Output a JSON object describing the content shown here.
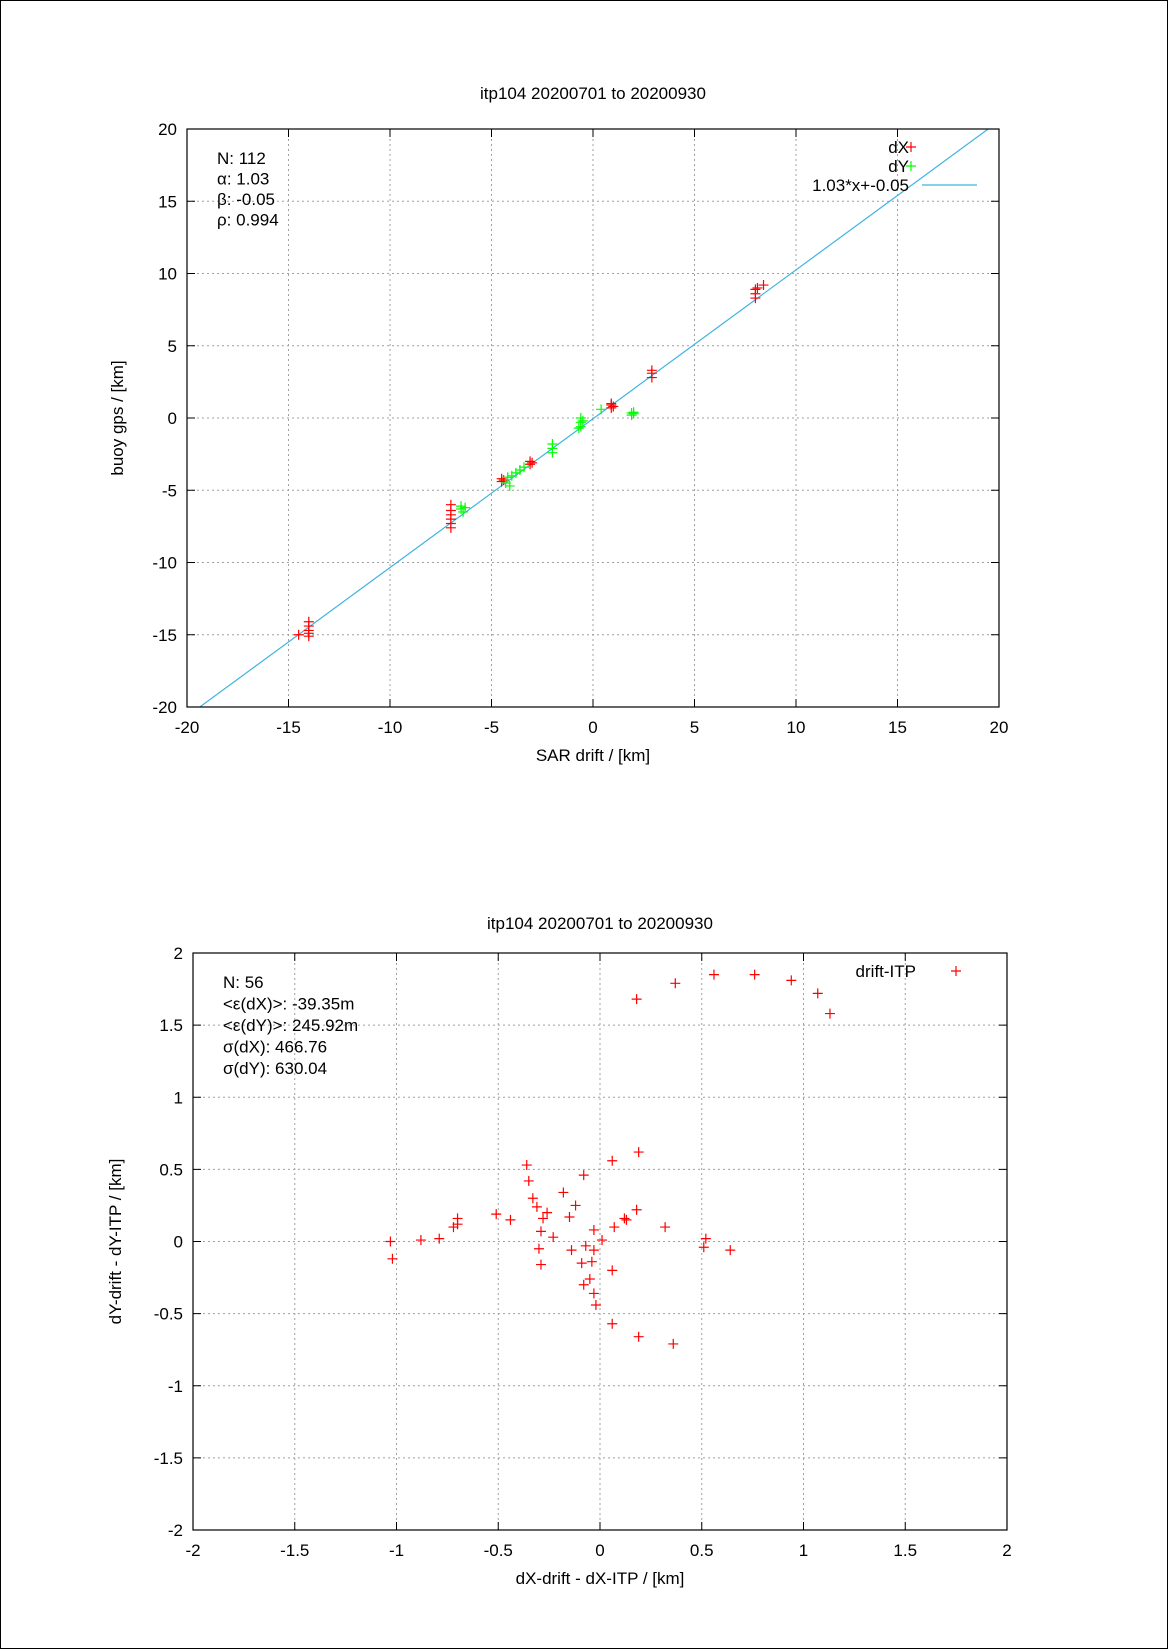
{
  "chart_data": [
    {
      "type": "scatter",
      "title": "itp104 20200701 to 20200930",
      "xlabel": "SAR drift / [km]",
      "ylabel": "buoy gps / [km]",
      "xlim": [
        -20,
        20
      ],
      "ylim": [
        -20,
        20
      ],
      "xticks": [
        "-20",
        "-15",
        "-10",
        "-5",
        "0",
        "5",
        "10",
        "15",
        "20"
      ],
      "yticks": [
        "-20",
        "-15",
        "-10",
        "-5",
        "0",
        "5",
        "10",
        "15",
        "20"
      ],
      "grid": true,
      "legend_position": "top-right",
      "stats": [
        "N: 112",
        "α: 1.03",
        "β: -0.05",
        "ρ: 0.994"
      ],
      "series": [
        {
          "name": "dX",
          "color": "#ff0000",
          "marker": "plus",
          "points": [
            [
              -14.5,
              -15.0
            ],
            [
              -14.0,
              -14.1
            ],
            [
              -14.0,
              -14.4
            ],
            [
              -14.0,
              -14.7
            ],
            [
              -14.0,
              -14.9
            ],
            [
              -14.0,
              -15.1
            ],
            [
              -7.0,
              -6.0
            ],
            [
              -7.0,
              -6.4
            ],
            [
              -7.0,
              -6.7
            ],
            [
              -7.0,
              -7.0
            ],
            [
              -7.0,
              -7.3
            ],
            [
              -7.0,
              -7.6
            ],
            [
              -4.5,
              -4.2
            ],
            [
              -4.5,
              -4.4
            ],
            [
              -4.4,
              -4.3
            ],
            [
              -3.1,
              -3.0
            ],
            [
              -3.1,
              -3.2
            ],
            [
              -3.0,
              -3.1
            ],
            [
              0.9,
              0.7
            ],
            [
              0.9,
              0.9
            ],
            [
              0.9,
              1.0
            ],
            [
              1.0,
              0.8
            ],
            [
              2.9,
              2.8
            ],
            [
              2.9,
              3.1
            ],
            [
              2.9,
              3.3
            ],
            [
              8.0,
              8.3
            ],
            [
              8.0,
              8.6
            ],
            [
              8.0,
              8.9
            ],
            [
              8.1,
              9.0
            ],
            [
              8.4,
              9.2
            ]
          ]
        },
        {
          "name": "dY",
          "color": "#00ff00",
          "marker": "plus",
          "points": [
            [
              -6.5,
              -6.1
            ],
            [
              -6.5,
              -6.3
            ],
            [
              -6.4,
              -6.5
            ],
            [
              -6.3,
              -6.2
            ],
            [
              -4.3,
              -4.5
            ],
            [
              -4.2,
              -4.1
            ],
            [
              -4.1,
              -4.7
            ],
            [
              -4.0,
              -4.0
            ],
            [
              -3.8,
              -3.8
            ],
            [
              -3.6,
              -3.6
            ],
            [
              -3.4,
              -3.4
            ],
            [
              -2.0,
              -1.8
            ],
            [
              -2.0,
              -2.1
            ],
            [
              -2.0,
              -2.4
            ],
            [
              -0.6,
              0.0
            ],
            [
              -0.6,
              -0.3
            ],
            [
              -0.6,
              -0.6
            ],
            [
              -0.7,
              -0.7
            ],
            [
              -0.5,
              -0.2
            ],
            [
              0.4,
              0.6
            ],
            [
              1.9,
              0.2
            ],
            [
              2.0,
              0.3
            ],
            [
              2.0,
              0.4
            ],
            [
              1.9,
              0.35
            ]
          ]
        }
      ],
      "fit": {
        "name": "1.03*x+-0.05",
        "slope": 1.03,
        "intercept": -0.05,
        "color": "#3fb4e0"
      }
    },
    {
      "type": "scatter",
      "title": "itp104 20200701 to 20200930",
      "xlabel": "dX-drift - dX-ITP / [km]",
      "ylabel": "dY-drift - dY-ITP / [km]",
      "xlim": [
        -2,
        2
      ],
      "ylim": [
        -2,
        2
      ],
      "xticks": [
        "-2",
        "-1.5",
        "-1",
        "-0.5",
        "0",
        "0.5",
        "1",
        "1.5",
        "2"
      ],
      "yticks": [
        "-2",
        "-1.5",
        "-1",
        "-0.5",
        "0",
        "0.5",
        "1",
        "1.5",
        "2"
      ],
      "grid": true,
      "legend_position": "top-right",
      "stats": [
        "N: 56",
        "<ε(dX)>:  -39.35m",
        "<ε(dY)>: 245.92m",
        "σ(dX):  466.76",
        "σ(dY):  630.04"
      ],
      "series": [
        {
          "name": "drift-ITP",
          "color": "#ff0000",
          "marker": "plus",
          "points": [
            [
              0.18,
              1.68
            ],
            [
              0.37,
              1.79
            ],
            [
              0.56,
              1.85
            ],
            [
              0.76,
              1.85
            ],
            [
              0.94,
              1.81
            ],
            [
              1.07,
              1.72
            ],
            [
              1.13,
              1.58
            ],
            [
              -1.03,
              0.0
            ],
            [
              -1.02,
              -0.12
            ],
            [
              -0.88,
              0.01
            ],
            [
              -0.79,
              0.02
            ],
            [
              -0.72,
              0.1
            ],
            [
              -0.7,
              0.16
            ],
            [
              -0.7,
              0.12
            ],
            [
              -0.51,
              0.19
            ],
            [
              -0.44,
              0.15
            ],
            [
              -0.36,
              0.53
            ],
            [
              -0.35,
              0.42
            ],
            [
              -0.33,
              0.3
            ],
            [
              -0.31,
              0.24
            ],
            [
              -0.3,
              -0.05
            ],
            [
              -0.29,
              0.07
            ],
            [
              -0.29,
              -0.16
            ],
            [
              -0.28,
              0.16
            ],
            [
              -0.26,
              0.2
            ],
            [
              -0.23,
              0.03
            ],
            [
              -0.18,
              0.34
            ],
            [
              -0.15,
              0.17
            ],
            [
              -0.14,
              -0.06
            ],
            [
              -0.12,
              0.25
            ],
            [
              -0.09,
              -0.15
            ],
            [
              -0.08,
              0.46
            ],
            [
              -0.08,
              -0.3
            ],
            [
              -0.07,
              -0.03
            ],
            [
              -0.05,
              -0.26
            ],
            [
              -0.04,
              -0.14
            ],
            [
              -0.03,
              -0.06
            ],
            [
              -0.03,
              0.08
            ],
            [
              -0.03,
              -0.36
            ],
            [
              -0.02,
              -0.44
            ],
            [
              0.01,
              0.01
            ],
            [
              0.06,
              0.56
            ],
            [
              0.06,
              -0.2
            ],
            [
              0.06,
              -0.57
            ],
            [
              0.07,
              0.1
            ],
            [
              0.12,
              0.16
            ],
            [
              0.13,
              0.15
            ],
            [
              0.18,
              0.22
            ],
            [
              0.19,
              0.62
            ],
            [
              0.19,
              -0.66
            ],
            [
              0.32,
              0.1
            ],
            [
              0.36,
              -0.71
            ],
            [
              0.51,
              -0.04
            ],
            [
              0.52,
              0.02
            ],
            [
              0.64,
              -0.06
            ]
          ]
        }
      ]
    }
  ]
}
